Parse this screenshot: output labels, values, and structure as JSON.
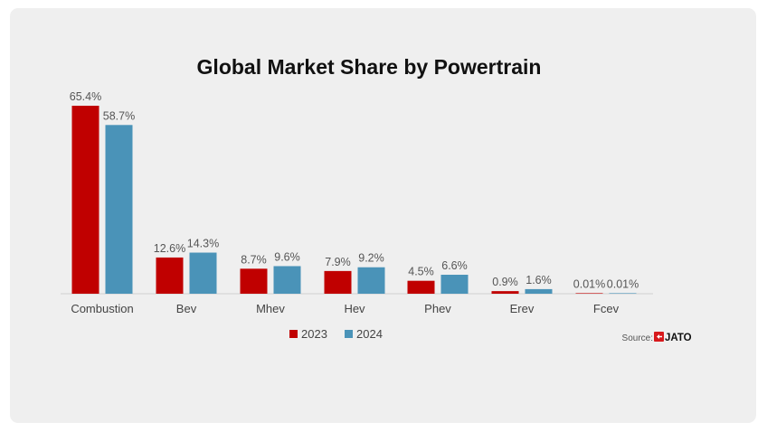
{
  "chart_data": {
    "type": "bar",
    "title": "Global Market Share by Powertrain",
    "categories": [
      "Combustion",
      "Bev",
      "Mhev",
      "Hev",
      "Phev",
      "Erev",
      "Fcev"
    ],
    "series": [
      {
        "name": "2023",
        "color": "#c00000",
        "values": [
          65.4,
          12.6,
          8.7,
          7.9,
          4.5,
          0.9,
          0.01
        ],
        "labels": [
          "65.4%",
          "12.6%",
          "8.7%",
          "7.9%",
          "4.5%",
          "0.9%",
          "0.01%"
        ]
      },
      {
        "name": "2024",
        "color": "#4a93b8",
        "values": [
          58.7,
          14.3,
          9.6,
          9.2,
          6.6,
          1.6,
          0.01
        ],
        "labels": [
          "58.7%",
          "14.3%",
          "9.6%",
          "9.2%",
          "6.6%",
          "1.6%",
          "0.01%"
        ]
      }
    ],
    "xlabel": "",
    "ylabel": "",
    "ylim": [
      0,
      65.4
    ],
    "grid": false,
    "legend": "bottom-center"
  },
  "source": {
    "label": "Source:",
    "brand": "JATO",
    "brand_color": "#d7191c"
  },
  "colors": {
    "background": "#efefef",
    "baseline": "#cfcfcf"
  }
}
